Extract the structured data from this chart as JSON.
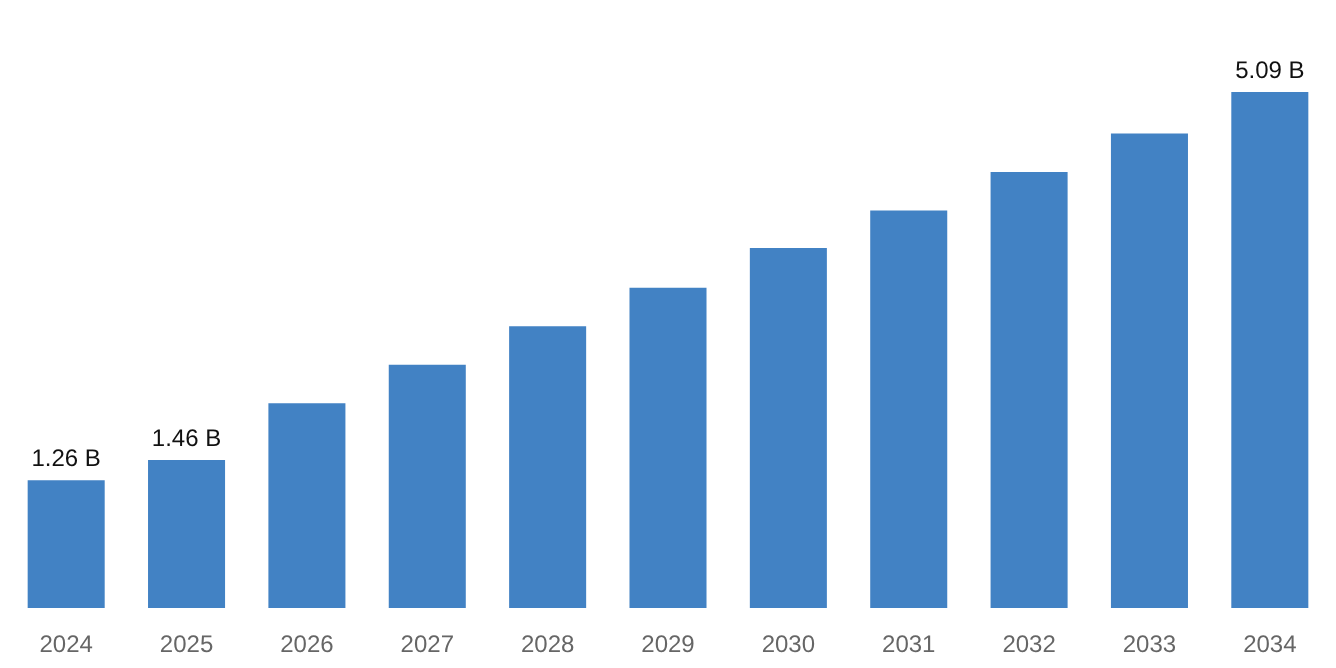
{
  "chart_data": {
    "type": "bar",
    "categories": [
      "2024",
      "2025",
      "2026",
      "2027",
      "2028",
      "2029",
      "2030",
      "2031",
      "2032",
      "2033",
      "2034"
    ],
    "values": [
      1.26,
      1.46,
      2.02,
      2.4,
      2.78,
      3.16,
      3.55,
      3.92,
      4.3,
      4.68,
      5.09
    ],
    "value_labels": [
      "1.26 B",
      "1.46 B",
      null,
      null,
      null,
      null,
      null,
      null,
      null,
      null,
      "5.09 B"
    ],
    "color": "#4282c4"
  }
}
